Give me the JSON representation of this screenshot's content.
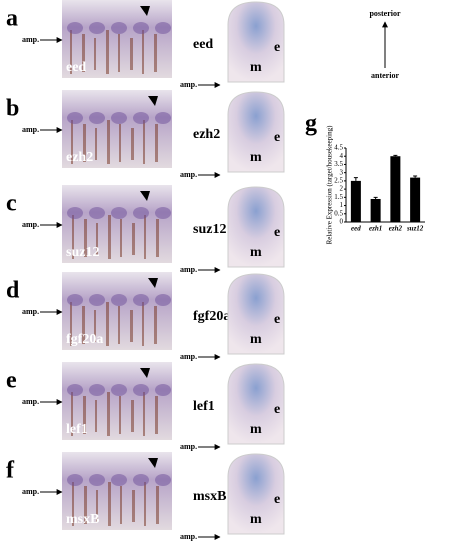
{
  "panels": [
    {
      "letter": "a",
      "gene": "eed",
      "amp": "amp.",
      "e": "e",
      "m": "m"
    },
    {
      "letter": "b",
      "gene": "ezh2",
      "amp": "amp.",
      "e": "e",
      "m": "m"
    },
    {
      "letter": "c",
      "gene": "suz12",
      "amp": "amp.",
      "e": "e",
      "m": "m"
    },
    {
      "letter": "d",
      "gene": "fgf20a",
      "amp": "amp.",
      "e": "e",
      "m": "m"
    },
    {
      "letter": "e",
      "gene": "lef1",
      "amp": "amp.",
      "e": "e",
      "m": "m"
    },
    {
      "letter": "f",
      "gene": "msxB",
      "amp": "amp.",
      "e": "e",
      "m": "m"
    }
  ],
  "orientation": {
    "posterior": "posterior",
    "anterior": "anterior"
  },
  "chart_letter": "g",
  "chart_data": {
    "type": "bar",
    "y_label": "Relative Expression (target/housekeeping)",
    "categories": [
      "eed",
      "ezh1",
      "ezh2",
      "suz12"
    ],
    "values": [
      2.5,
      1.4,
      4.0,
      2.7
    ],
    "errors": [
      0.2,
      0.1,
      0.05,
      0.1
    ],
    "color": "#000000",
    "ylim": [
      0,
      4.5
    ],
    "yticks": [
      0,
      0.5,
      1,
      1.5,
      2,
      2.5,
      3,
      3.5,
      4,
      4.5
    ]
  }
}
